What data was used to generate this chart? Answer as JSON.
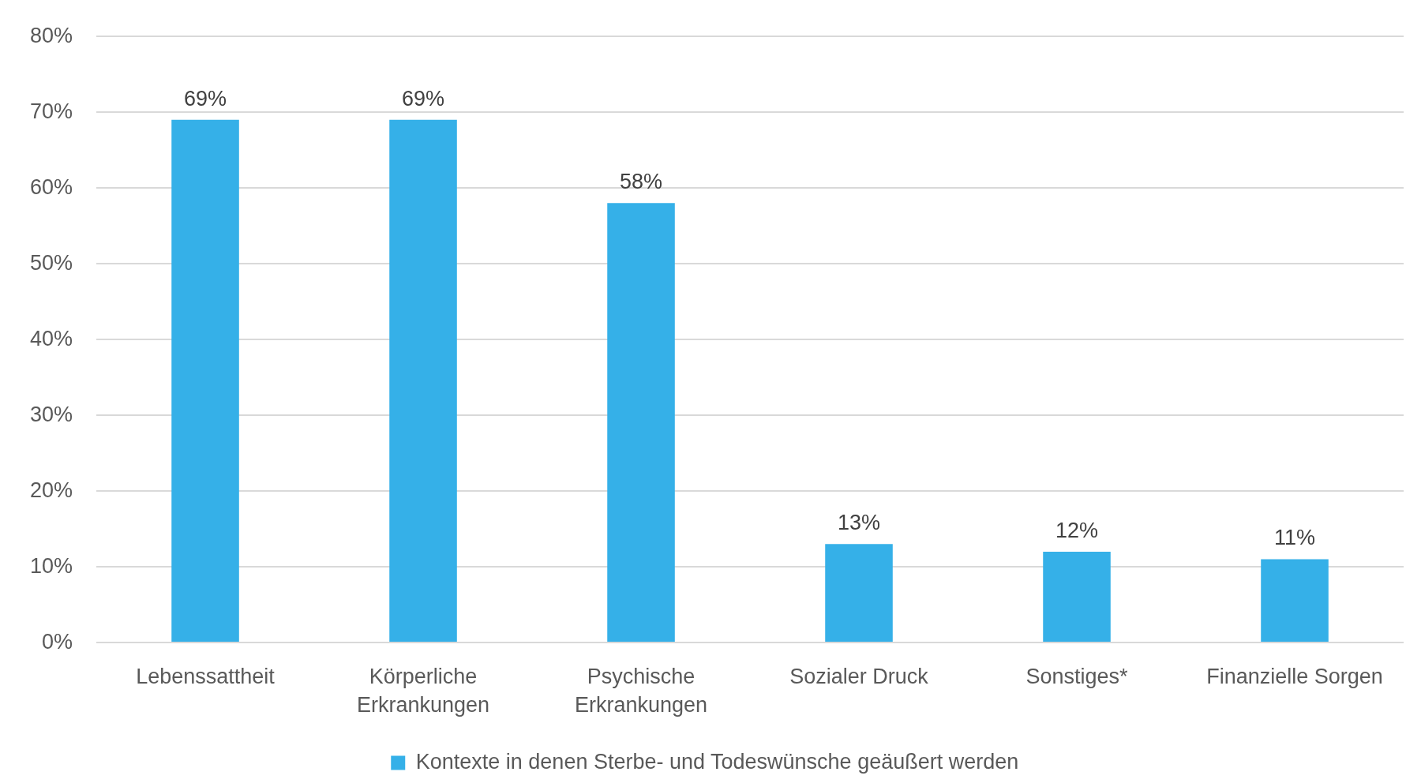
{
  "chart_data": {
    "type": "bar",
    "categories": [
      "Lebenssattheit",
      "Körperliche Erkrankungen",
      "Psychische Erkrankungen",
      "Sozialer Druck",
      "Sonstiges*",
      "Finanzielle Sorgen"
    ],
    "series": [
      {
        "name": "Kontexte in denen Sterbe- und Todeswünsche geäußert werden",
        "color": "#35b0e8",
        "values": [
          69,
          69,
          58,
          13,
          12,
          11
        ],
        "value_labels": [
          "69%",
          "69%",
          "58%",
          "13%",
          "12%",
          "11%"
        ]
      }
    ],
    "ylim": [
      0,
      80
    ],
    "yticks": [
      {
        "value": 0,
        "label": "0%"
      },
      {
        "value": 10,
        "label": "10%"
      },
      {
        "value": 20,
        "label": "20%"
      },
      {
        "value": 30,
        "label": "30%"
      },
      {
        "value": 40,
        "label": "40%"
      },
      {
        "value": 50,
        "label": "50%"
      },
      {
        "value": 60,
        "label": "60%"
      },
      {
        "value": 70,
        "label": "70%"
      },
      {
        "value": 80,
        "label": "80%"
      }
    ],
    "grid": "y",
    "legend": "bottom"
  }
}
